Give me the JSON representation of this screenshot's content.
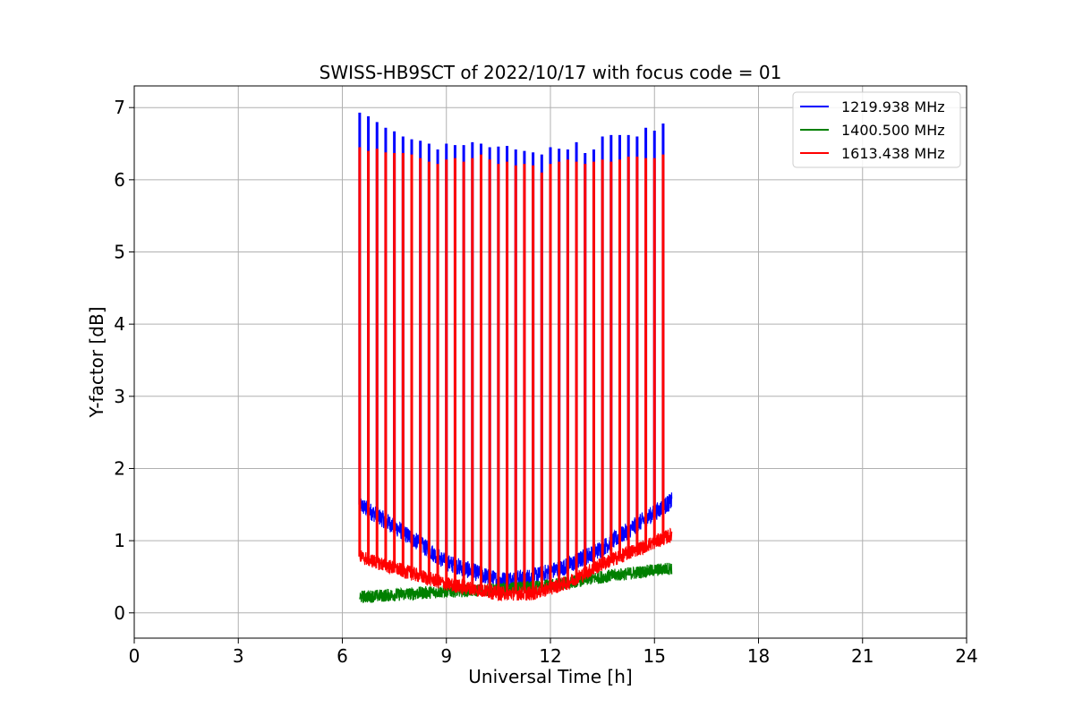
{
  "chart_data": {
    "type": "line",
    "title": "SWISS-HB9SCT of 2022/10/17 with focus code = 01",
    "xlabel": "Universal Time [h]",
    "ylabel": "Y-factor [dB]",
    "xlim": [
      0,
      24
    ],
    "ylim": [
      -0.35,
      7.3
    ],
    "xticks": [
      0,
      3,
      6,
      9,
      12,
      15,
      18,
      21,
      24
    ],
    "yticks": [
      0,
      1,
      2,
      3,
      4,
      5,
      6,
      7
    ],
    "grid": true,
    "legend_position": "top-right",
    "series": [
      {
        "name": "1219.938 MHz",
        "color": "#0000ff",
        "baseline": [
          [
            6.5,
            1.5
          ],
          [
            7.5,
            1.2
          ],
          [
            9,
            0.7
          ],
          [
            10.5,
            0.45
          ],
          [
            11.5,
            0.5
          ],
          [
            12.5,
            0.65
          ],
          [
            13.5,
            0.9
          ],
          [
            15.5,
            1.55
          ]
        ],
        "noise_amplitude": 0.12,
        "peaks": [
          {
            "x": 6.5,
            "y": 6.93
          },
          {
            "x": 6.75,
            "y": 6.88
          },
          {
            "x": 7.0,
            "y": 6.8
          },
          {
            "x": 7.25,
            "y": 6.72
          },
          {
            "x": 7.5,
            "y": 6.67
          },
          {
            "x": 7.75,
            "y": 6.6
          },
          {
            "x": 8.0,
            "y": 6.56
          },
          {
            "x": 8.25,
            "y": 6.54
          },
          {
            "x": 8.5,
            "y": 6.5
          },
          {
            "x": 8.75,
            "y": 6.42
          },
          {
            "x": 9.0,
            "y": 6.5
          },
          {
            "x": 9.25,
            "y": 6.48
          },
          {
            "x": 9.5,
            "y": 6.48
          },
          {
            "x": 9.75,
            "y": 6.52
          },
          {
            "x": 10.0,
            "y": 6.5
          },
          {
            "x": 10.25,
            "y": 6.45
          },
          {
            "x": 10.5,
            "y": 6.46
          },
          {
            "x": 10.75,
            "y": 6.47
          },
          {
            "x": 11.0,
            "y": 6.42
          },
          {
            "x": 11.25,
            "y": 6.4
          },
          {
            "x": 11.5,
            "y": 6.38
          },
          {
            "x": 11.75,
            "y": 6.35
          },
          {
            "x": 12.0,
            "y": 6.45
          },
          {
            "x": 12.25,
            "y": 6.43
          },
          {
            "x": 12.5,
            "y": 6.42
          },
          {
            "x": 12.75,
            "y": 6.52
          },
          {
            "x": 13.0,
            "y": 6.37
          },
          {
            "x": 13.25,
            "y": 6.42
          },
          {
            "x": 13.5,
            "y": 6.6
          },
          {
            "x": 13.75,
            "y": 6.62
          },
          {
            "x": 14.0,
            "y": 6.62
          },
          {
            "x": 14.25,
            "y": 6.62
          },
          {
            "x": 14.5,
            "y": 6.6
          },
          {
            "x": 14.75,
            "y": 6.72
          },
          {
            "x": 15.0,
            "y": 6.68
          },
          {
            "x": 15.25,
            "y": 6.78
          }
        ]
      },
      {
        "name": "1400.500 MHz",
        "color": "#008000",
        "baseline": [
          [
            6.5,
            0.22
          ],
          [
            7.5,
            0.25
          ],
          [
            9,
            0.3
          ],
          [
            10.5,
            0.32
          ],
          [
            12,
            0.38
          ],
          [
            13.5,
            0.5
          ],
          [
            15.5,
            0.62
          ]
        ],
        "noise_amplitude": 0.09,
        "peaks": []
      },
      {
        "name": "1613.438 MHz",
        "color": "#ff0000",
        "baseline": [
          [
            6.5,
            0.78
          ],
          [
            7.5,
            0.62
          ],
          [
            9,
            0.4
          ],
          [
            10.5,
            0.27
          ],
          [
            11.5,
            0.27
          ],
          [
            12.5,
            0.42
          ],
          [
            13.5,
            0.68
          ],
          [
            15.5,
            1.08
          ]
        ],
        "noise_amplitude": 0.1,
        "peaks": [
          {
            "x": 6.5,
            "y": 6.45
          },
          {
            "x": 6.75,
            "y": 6.4
          },
          {
            "x": 7.0,
            "y": 6.43
          },
          {
            "x": 7.25,
            "y": 6.38
          },
          {
            "x": 7.5,
            "y": 6.37
          },
          {
            "x": 7.75,
            "y": 6.37
          },
          {
            "x": 8.0,
            "y": 6.35
          },
          {
            "x": 8.25,
            "y": 6.3
          },
          {
            "x": 8.5,
            "y": 6.25
          },
          {
            "x": 8.75,
            "y": 6.22
          },
          {
            "x": 9.0,
            "y": 6.28
          },
          {
            "x": 9.25,
            "y": 6.3
          },
          {
            "x": 9.5,
            "y": 6.25
          },
          {
            "x": 9.75,
            "y": 6.3
          },
          {
            "x": 10.0,
            "y": 6.35
          },
          {
            "x": 10.25,
            "y": 6.28
          },
          {
            "x": 10.5,
            "y": 6.22
          },
          {
            "x": 10.75,
            "y": 6.25
          },
          {
            "x": 11.0,
            "y": 6.2
          },
          {
            "x": 11.25,
            "y": 6.22
          },
          {
            "x": 11.5,
            "y": 6.2
          },
          {
            "x": 11.75,
            "y": 6.1
          },
          {
            "x": 12.0,
            "y": 6.22
          },
          {
            "x": 12.25,
            "y": 6.25
          },
          {
            "x": 12.5,
            "y": 6.28
          },
          {
            "x": 12.75,
            "y": 6.25
          },
          {
            "x": 13.0,
            "y": 6.22
          },
          {
            "x": 13.25,
            "y": 6.25
          },
          {
            "x": 13.5,
            "y": 6.28
          },
          {
            "x": 13.75,
            "y": 6.25
          },
          {
            "x": 14.0,
            "y": 6.28
          },
          {
            "x": 14.25,
            "y": 6.32
          },
          {
            "x": 14.5,
            "y": 6.32
          },
          {
            "x": 14.75,
            "y": 6.3
          },
          {
            "x": 15.0,
            "y": 6.3
          },
          {
            "x": 15.25,
            "y": 6.35
          }
        ]
      }
    ]
  }
}
